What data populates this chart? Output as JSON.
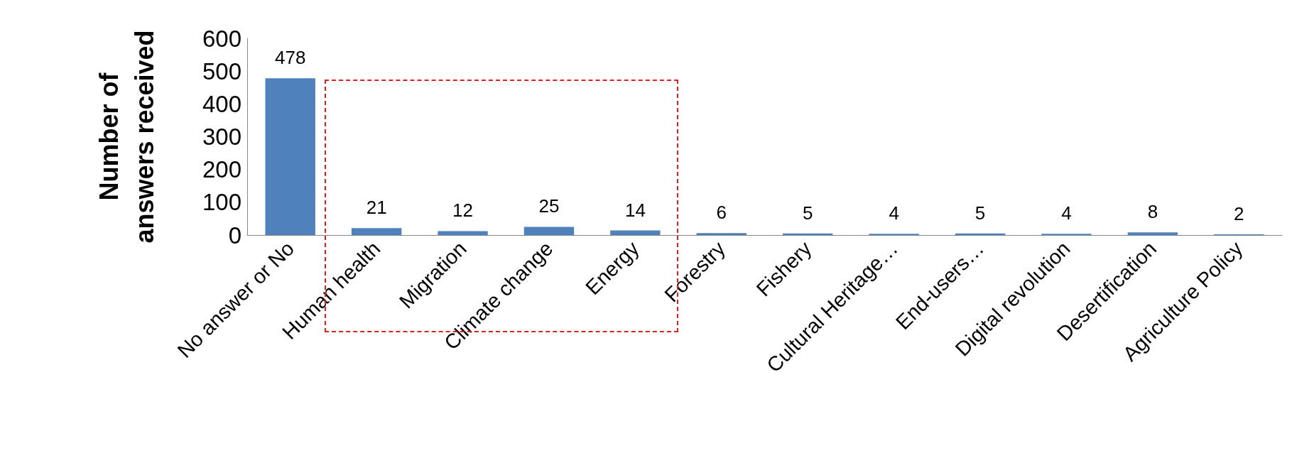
{
  "chart_data": {
    "type": "bar",
    "ylabel": "Number of\nanswers received",
    "categories": [
      "No answer or No",
      "Human health",
      "Migration",
      "Climate change",
      "Energy",
      "Forestry",
      "Fishery",
      "Cultural Heritage…",
      "End-users…",
      "Digital revolution",
      "Desertification",
      "Agriculture Policy"
    ],
    "values": [
      478,
      21,
      12,
      25,
      14,
      6,
      5,
      4,
      5,
      4,
      8,
      2
    ],
    "color": "#4f81bd",
    "ylim": [
      0,
      600
    ],
    "yticks": [
      0,
      100,
      200,
      300,
      400,
      500,
      600
    ],
    "grid": false,
    "data_labels": true
  }
}
